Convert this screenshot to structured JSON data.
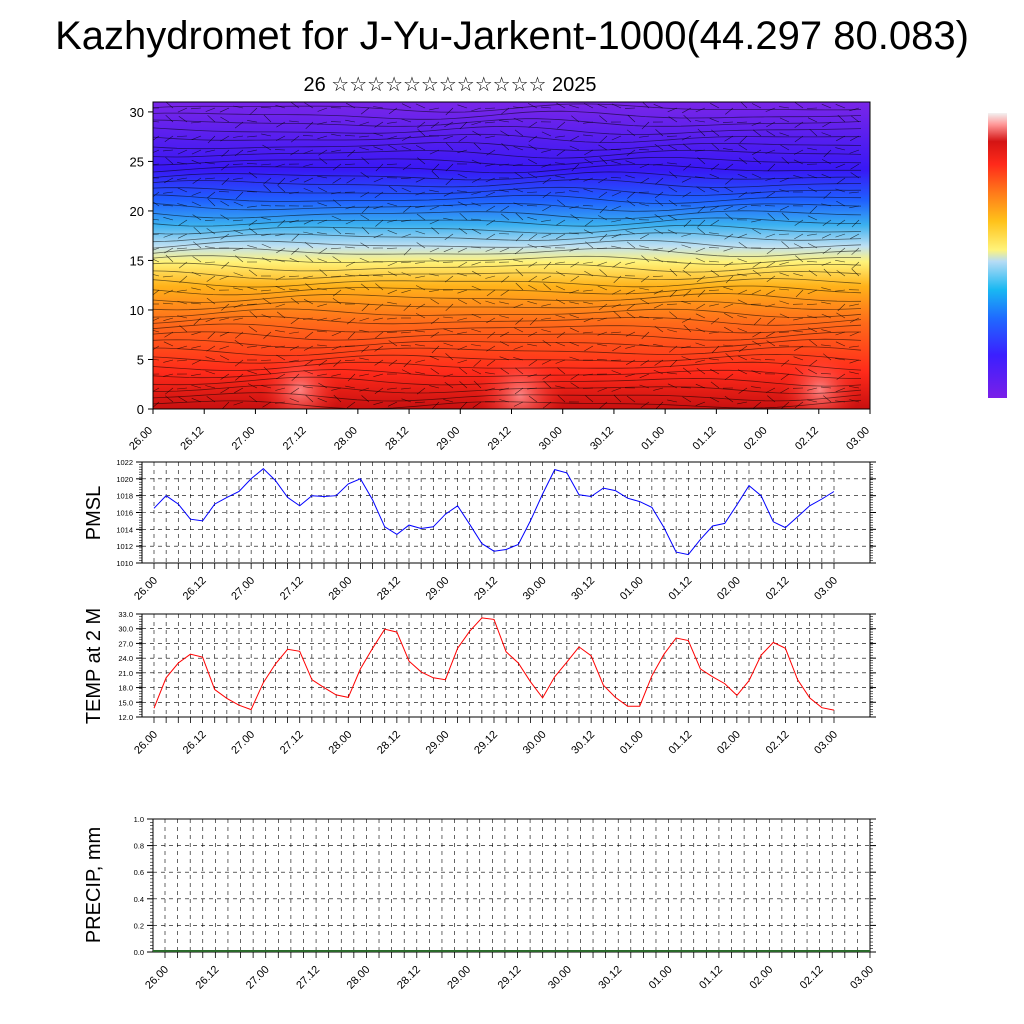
{
  "page": {
    "title": "Kazhydromet for J-Yu-Jarkent-1000(44.297 80.083)",
    "subtitle": "26 ☆☆☆☆☆☆☆☆☆☆☆☆ 2025"
  },
  "chart_data": [
    {
      "type": "heatmap",
      "title": "",
      "xlabel": "",
      "ylabel": "",
      "x_tick_labels": [
        "26.00",
        "26.12",
        "27.00",
        "27.12",
        "28.00",
        "28.12",
        "29.00",
        "29.12",
        "30.00",
        "30.12",
        "01.00",
        "01.12",
        "02.00",
        "02.12",
        "03.00"
      ],
      "y_ticks": [
        0,
        5,
        10,
        15,
        20,
        25,
        30
      ],
      "ylim": [
        0,
        31
      ],
      "colorbar": [
        "#7a1fe8",
        "#3b1fff",
        "#1f6aff",
        "#19b8f2",
        "#b7dcf5",
        "#fff37a",
        "#ffc21a",
        "#ff7a1a",
        "#ff2a1a",
        "#d41414",
        "#ff9898",
        "#f2f2f2"
      ],
      "overlay": "wind barbs"
    },
    {
      "type": "line",
      "ylabel": "PMSL",
      "ylim": [
        1010,
        1022
      ],
      "y_ticks": [
        1010,
        1012,
        1014,
        1016,
        1018,
        1020,
        1022
      ],
      "x_tick_labels": [
        "26.00",
        "26.12",
        "27.00",
        "27.12",
        "28.00",
        "28.12",
        "29.00",
        "29.12",
        "30.00",
        "30.12",
        "01.00",
        "01.12",
        "02.00",
        "02.12",
        "03.00"
      ],
      "series": [
        {
          "color": "#0000ff",
          "values": [
            1016.5,
            1018,
            1017,
            1015.2,
            1015,
            1017,
            1017.8,
            1018.5,
            1020,
            1021.2,
            1019.8,
            1017.8,
            1016.8,
            1018,
            1017.9,
            1018,
            1019.4,
            1020,
            1017.5,
            1014.3,
            1013.4,
            1014.5,
            1014.1,
            1014.3,
            1015.8,
            1016.8,
            1014.6,
            1012.3,
            1011.4,
            1011.6,
            1012.2,
            1015,
            1018.2,
            1021.1,
            1020.7,
            1018.1,
            1017.9,
            1018.9,
            1018.6,
            1017.7,
            1017.3,
            1016.6,
            1014.2,
            1011.3,
            1011,
            1012.8,
            1014.4,
            1014.7,
            1016.9,
            1019.2,
            1018,
            1014.9,
            1014.2,
            1015.5,
            1016.8,
            1017.6,
            1018.5
          ]
        }
      ]
    },
    {
      "type": "line",
      "ylabel": "TEMP at 2 M",
      "ylim": [
        12,
        33
      ],
      "y_ticks": [
        12,
        15,
        18,
        21,
        24,
        27,
        30,
        33
      ],
      "x_tick_labels": [
        "26.00",
        "26.12",
        "27.00",
        "27.12",
        "28.00",
        "28.12",
        "29.00",
        "29.12",
        "30.00",
        "30.12",
        "01.00",
        "01.12",
        "02.00",
        "02.12",
        "03.00"
      ],
      "series": [
        {
          "color": "#ff0000",
          "values": [
            13.8,
            20,
            23,
            24.8,
            24.2,
            17.6,
            15.8,
            14.4,
            13.5,
            19,
            22.8,
            25.8,
            25.4,
            19.6,
            18,
            16.5,
            16,
            21.8,
            26,
            29.9,
            29.3,
            23.4,
            21.2,
            20,
            19.6,
            26,
            29.5,
            32.2,
            31.9,
            25.3,
            23,
            19.2,
            15.9,
            20.2,
            23.2,
            26.3,
            24.5,
            18.5,
            16,
            14.2,
            14.2,
            20.4,
            24.8,
            28.1,
            27.6,
            21.8,
            20.2,
            18.8,
            16.4,
            19.4,
            24.6,
            27.2,
            26,
            19.6,
            15.9,
            13.9,
            13.4
          ]
        }
      ]
    },
    {
      "type": "bar",
      "ylabel": "PRECIP, mm",
      "ylim": [
        0,
        1.0
      ],
      "y_ticks": [
        "0.0",
        "0.2",
        "0.4",
        "0.6",
        "0.8",
        "1.0"
      ],
      "x_tick_labels": [
        "26.00",
        "26.12",
        "27.00",
        "27.12",
        "28.00",
        "28.12",
        "29.00",
        "29.12",
        "30.00",
        "30.12",
        "01.00",
        "01.12",
        "02.00",
        "02.12",
        "03.00"
      ],
      "values": []
    }
  ]
}
